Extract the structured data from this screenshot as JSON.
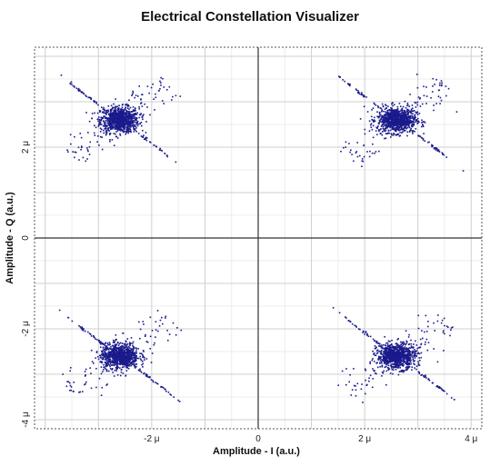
{
  "title": "Electrical Constellation Visualizer",
  "chart_data": {
    "type": "scatter",
    "title": "Electrical Constellation Visualizer",
    "xlabel": "Amplitude - I (a.u.)",
    "ylabel": "Amplitude - Q (a.u.)",
    "xlim": [
      -4.2,
      4.2
    ],
    "ylim": [
      -4.2,
      4.2
    ],
    "x_unit": "μ",
    "y_unit": "μ",
    "x_ticks": [
      {
        "value": -2,
        "label": "-2 μ"
      },
      {
        "value": 0,
        "label": "0"
      },
      {
        "value": 2,
        "label": "2 μ"
      },
      {
        "value": 4,
        "label": "4 μ"
      }
    ],
    "y_ticks": [
      {
        "value": 2,
        "label": "2 μ"
      },
      {
        "value": 0,
        "label": "0"
      },
      {
        "value": -2,
        "label": "-2 μ"
      },
      {
        "value": -4,
        "label": "-4 μ"
      }
    ],
    "grid": true,
    "marker_color": "#1a1a8c",
    "clusters": [
      {
        "center_x": -2.6,
        "center_y": 2.6
      },
      {
        "center_x": 2.6,
        "center_y": 2.6
      },
      {
        "center_x": -2.6,
        "center_y": -2.6
      },
      {
        "center_x": 2.6,
        "center_y": -2.6
      }
    ]
  }
}
